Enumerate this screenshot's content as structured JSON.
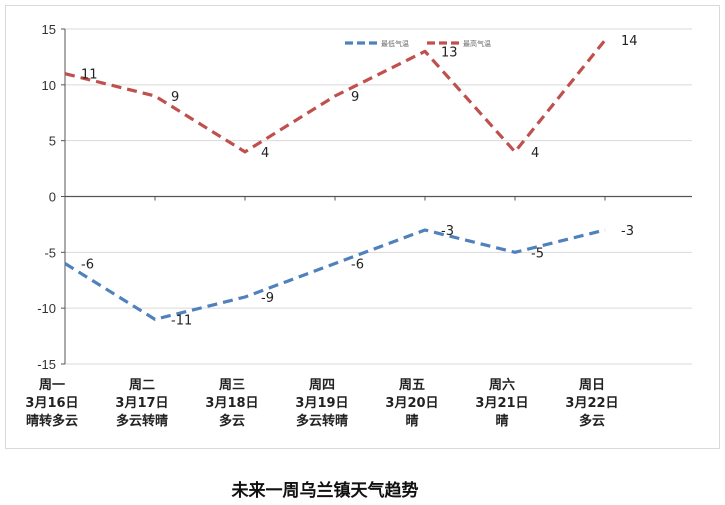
{
  "chart_data": {
    "type": "line",
    "categories": [
      [
        "周一",
        "3月16日",
        "晴转多云"
      ],
      [
        "周二",
        "3月17日",
        "多云转晴"
      ],
      [
        "周三",
        "3月18日",
        "多云"
      ],
      [
        "周四",
        "3月19日",
        "多云转晴"
      ],
      [
        "周五",
        "3月20日",
        "晴"
      ],
      [
        "周六",
        "3月21日",
        "晴"
      ],
      [
        "周日",
        "3月22日",
        "多云"
      ]
    ],
    "series": [
      {
        "name": "最低气温",
        "values": [
          -6,
          -11,
          -9,
          -6,
          -3,
          -5,
          -3
        ],
        "color": "#4f81bd"
      },
      {
        "name": "最高气温",
        "values": [
          11,
          9,
          4,
          9,
          13,
          4,
          14
        ],
        "color": "#c0504d"
      }
    ],
    "yticks": [
      15,
      10,
      5,
      0,
      -5,
      -10,
      -15
    ],
    "ylim": [
      -15,
      15
    ],
    "grid": true,
    "legend": "top-right",
    "caption": "未来一周乌兰镇天气趋势"
  }
}
